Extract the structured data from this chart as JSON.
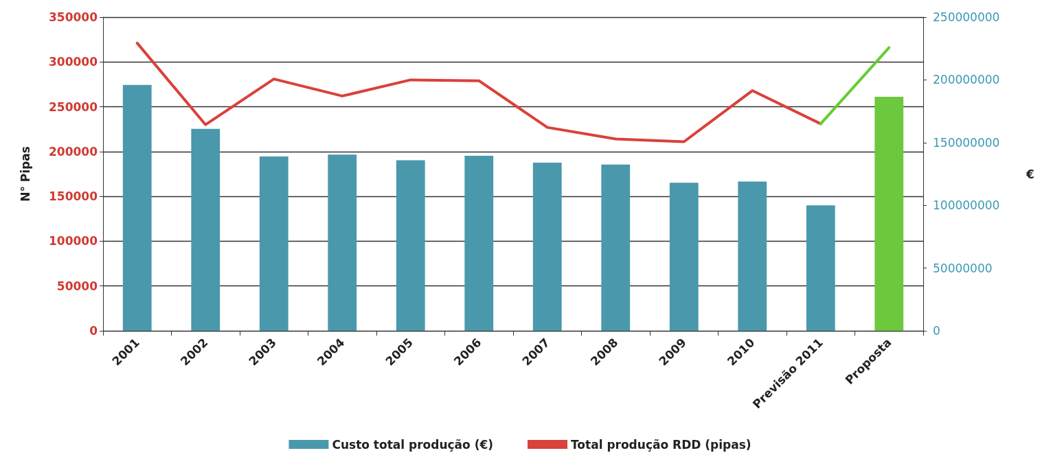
{
  "chart_data": {
    "type": "bar",
    "categories": [
      "2001",
      "2002",
      "2003",
      "2004",
      "2005",
      "2006",
      "2007",
      "2008",
      "2009",
      "2010",
      "Previsão 2011",
      "Proposta"
    ],
    "ylabel": "N° Pipas",
    "y2label": "€",
    "ylim": [
      0,
      350000
    ],
    "yticks": [
      0,
      50000,
      100000,
      150000,
      200000,
      250000,
      300000,
      350000
    ],
    "y2lim": [
      0,
      250000000
    ],
    "y2ticks": [
      0,
      50000000,
      100000000,
      150000000,
      200000000,
      250000000
    ],
    "grid": "y",
    "legend": "bottom",
    "marker": "none",
    "series": [
      {
        "axis": "y2",
        "name": "Custo total produção (€)",
        "color": "#4a98ab",
        "colors": [
          "#4a98ab",
          "#4a98ab",
          "#4a98ab",
          "#4a98ab",
          "#4a98ab",
          "#4a98ab",
          "#4a98ab",
          "#4a98ab",
          "#4a98ab",
          "#4a98ab",
          "#4a98ab",
          "#6cc83c"
        ],
        "values": [
          196000000,
          161000000,
          139000000,
          140500000,
          136000000,
          139500000,
          134000000,
          132500000,
          118000000,
          119000000,
          100000000,
          186500000
        ]
      },
      {
        "type": "line",
        "axis": "y",
        "name": "Total produção RDD (pipas)",
        "color": "#d9413a",
        "values": [
          321000,
          230000,
          281000,
          262000,
          280000,
          279000,
          227000,
          214000,
          211000,
          268000,
          231000,
          null
        ]
      },
      {
        "type": "line",
        "axis": "y",
        "color": "#66cc33",
        "values": [
          null,
          null,
          null,
          null,
          null,
          null,
          null,
          null,
          null,
          null,
          231000,
          316000
        ]
      }
    ]
  }
}
